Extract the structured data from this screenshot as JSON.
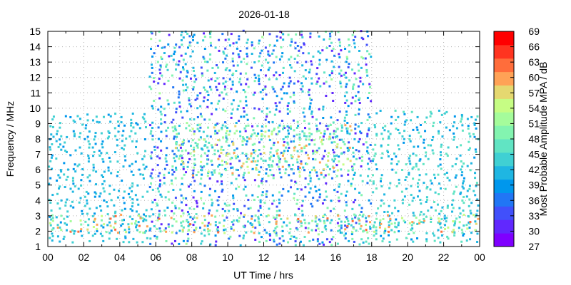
{
  "chart_data": {
    "type": "heatmap",
    "title": "2026-01-18",
    "xlabel": "UT Time / hrs",
    "ylabel": "Frequency / MHz",
    "xlim": [
      0,
      24
    ],
    "ylim": [
      1,
      15
    ],
    "x_ticks": [
      "00",
      "02",
      "04",
      "06",
      "08",
      "10",
      "12",
      "14",
      "16",
      "18",
      "20",
      "22",
      "00"
    ],
    "y_ticks": [
      "1",
      "2",
      "3",
      "4",
      "5",
      "6",
      "7",
      "8",
      "9",
      "10",
      "11",
      "12",
      "13",
      "14",
      "15"
    ],
    "grid": true,
    "colorbar": {
      "label": "Most Probable Amplitude MPA / dB",
      "range": [
        27,
        69
      ],
      "ticks": [
        "27",
        "30",
        "33",
        "36",
        "39",
        "42",
        "45",
        "48",
        "51",
        "54",
        "57",
        "60",
        "63",
        "66",
        "69"
      ],
      "colors": [
        "#7f00ff",
        "#6128fe",
        "#4150fb",
        "#2176f5",
        "#0097ed",
        "#1fb6e2",
        "#40d0d3",
        "#61e4c3",
        "#83f4b0",
        "#a5fc9b",
        "#c6fd84",
        "#e5d870",
        "#ffa256",
        "#ff6d3b",
        "#ff3420",
        "#ff0000"
      ]
    },
    "data_regions": [
      {
        "x": [
          0,
          5.6
        ],
        "y": [
          1.2,
          9.5
        ],
        "level": [
          39,
          45
        ]
      },
      {
        "x": [
          5.6,
          18
        ],
        "y": [
          1,
          15
        ],
        "level": [
          30,
          51
        ]
      },
      {
        "x": [
          18,
          24
        ],
        "y": [
          1.2,
          9.8
        ],
        "level": [
          39,
          48
        ]
      },
      {
        "x": [
          0,
          24
        ],
        "y": [
          1.8,
          3.0
        ],
        "level": [
          42,
          63
        ]
      },
      {
        "x": [
          7,
          17
        ],
        "y": [
          5.5,
          8.8
        ],
        "level": [
          42,
          60
        ]
      }
    ]
  }
}
